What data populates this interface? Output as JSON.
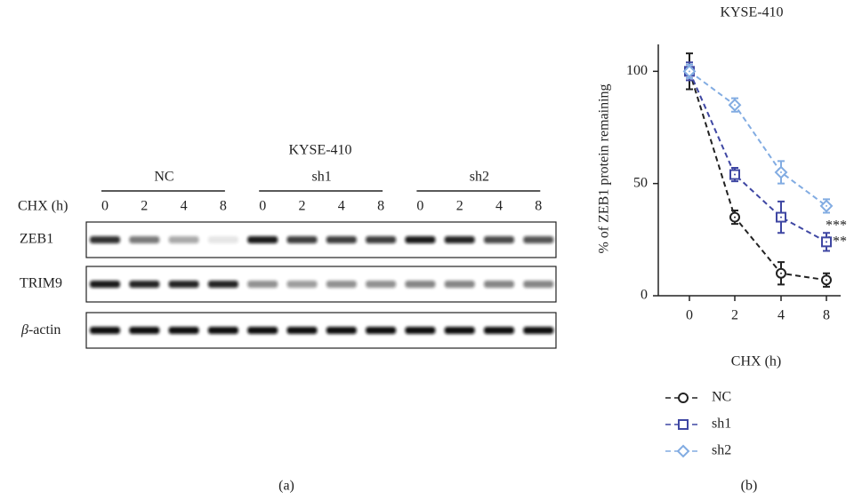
{
  "blot": {
    "title": "KYSE-410",
    "time_label": "CHX (h)",
    "groups": [
      {
        "name": "NC",
        "lanes": [
          "0",
          "2",
          "4",
          "8"
        ]
      },
      {
        "name": "sh1",
        "lanes": [
          "0",
          "2",
          "4",
          "8"
        ]
      },
      {
        "name": "sh2",
        "lanes": [
          "0",
          "2",
          "4",
          "8"
        ]
      }
    ],
    "rows": [
      "ZEB1",
      "TRIM9",
      "-actin"
    ],
    "row_prefix": "β",
    "panel_label": "(a)"
  },
  "chart_data": {
    "type": "line",
    "title": "KYSE-410",
    "y_label": "% of ZEB1 protein remaining",
    "x_label": "CHX (h)",
    "categories": [
      "0",
      "2",
      "4",
      "8"
    ],
    "series": [
      {
        "name": "NC",
        "color": "#222222",
        "marker": "circle",
        "values": [
          100,
          35,
          10,
          7
        ],
        "errors": [
          8,
          3,
          5,
          3
        ]
      },
      {
        "name": "sh1",
        "color": "#3f47a3",
        "marker": "square",
        "values": [
          100,
          54,
          35,
          24
        ],
        "errors": [
          4,
          3,
          7,
          4
        ]
      },
      {
        "name": "sh2",
        "color": "#82ace2",
        "marker": "diamond",
        "values": [
          100,
          85,
          55,
          40
        ],
        "errors": [
          3,
          3,
          5,
          3
        ]
      }
    ],
    "ylim": [
      0,
      112
    ],
    "yticks": [
      0,
      50,
      100
    ],
    "annotations": [
      "***",
      "***"
    ],
    "panel_label": "(b)"
  }
}
